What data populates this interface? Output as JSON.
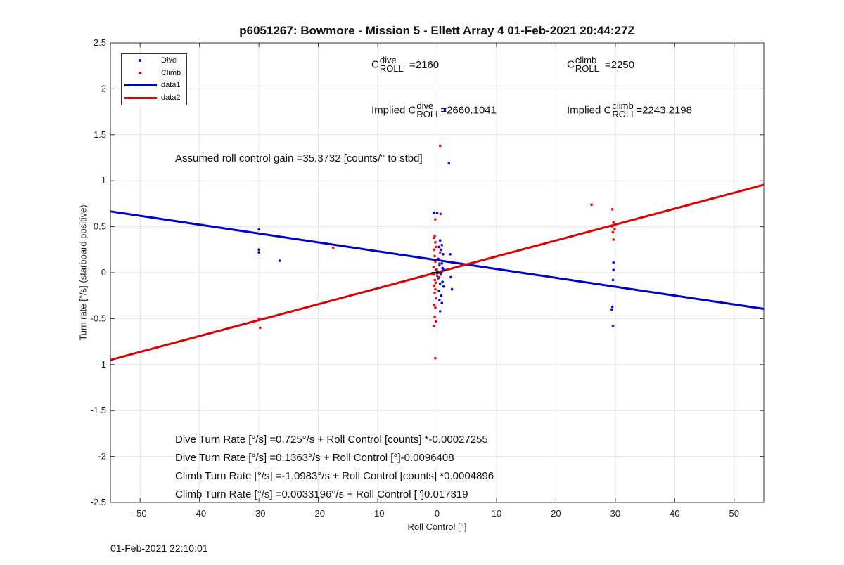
{
  "chart_data": {
    "type": "scatter",
    "title": "p6051267: Bowmore - Mission 5 - Ellett Array 4 01-Feb-2021 20:44:27Z",
    "xlabel": "Roll Control [°]",
    "ylabel": "Turn rate [°/s] (starboard positive)",
    "xlim": [
      -55,
      55
    ],
    "ylim": [
      -2.5,
      2.5
    ],
    "xticks": [
      -50,
      -40,
      -30,
      -20,
      -10,
      0,
      10,
      20,
      30,
      40,
      50
    ],
    "yticks": [
      -2.5,
      -2,
      -1.5,
      -1,
      -0.5,
      0,
      0.5,
      1,
      1.5,
      2,
      2.5
    ],
    "grid": true,
    "legend_position": "top-left",
    "series": [
      {
        "name": "Dive",
        "kind": "points",
        "color": "#0000ff",
        "points": [
          [
            -30,
            0.47
          ],
          [
            -30,
            0.25
          ],
          [
            -30,
            0.22
          ],
          [
            -26.5,
            0.13
          ],
          [
            -0.5,
            0.65
          ],
          [
            0,
            0.65
          ],
          [
            0.5,
            0.35
          ],
          [
            0.8,
            0.3
          ],
          [
            0.3,
            0.28
          ],
          [
            0.6,
            0.25
          ],
          [
            1,
            0.2
          ],
          [
            2.2,
            0.2
          ],
          [
            0.2,
            0.15
          ],
          [
            0.8,
            0.1
          ],
          [
            0.4,
            0.08
          ],
          [
            0.9,
            0.05
          ],
          [
            1.1,
            0.03
          ],
          [
            0.3,
            0.0
          ],
          [
            0.6,
            -0.02
          ],
          [
            2.3,
            -0.05
          ],
          [
            0.2,
            -0.06
          ],
          [
            0.9,
            -0.1
          ],
          [
            0.5,
            -0.12
          ],
          [
            1.1,
            -0.15
          ],
          [
            0.3,
            -0.2
          ],
          [
            2.5,
            -0.18
          ],
          [
            0.7,
            -0.25
          ],
          [
            0.4,
            -0.3
          ],
          [
            0.8,
            -0.33
          ],
          [
            0.5,
            -0.42
          ],
          [
            1.3,
            1.77
          ],
          [
            2,
            1.19
          ],
          [
            29.7,
            0.11
          ],
          [
            29.7,
            0.03
          ],
          [
            29.6,
            -0.08
          ],
          [
            29.5,
            -0.37
          ],
          [
            29.4,
            -0.4
          ],
          [
            29.6,
            -0.58
          ]
        ]
      },
      {
        "name": "Climb",
        "kind": "points",
        "color": "#ff0000",
        "points": [
          [
            -30,
            -0.5
          ],
          [
            -29.8,
            -0.6
          ],
          [
            -17.5,
            0.27
          ],
          [
            0.5,
            1.38
          ],
          [
            0.6,
            0.64
          ],
          [
            -0.3,
            0.58
          ],
          [
            -0.4,
            0.4
          ],
          [
            -0.5,
            0.38
          ],
          [
            -0.3,
            0.33
          ],
          [
            -0.2,
            0.28
          ],
          [
            -0.5,
            0.25
          ],
          [
            0.5,
            0.22
          ],
          [
            -0.4,
            0.18
          ],
          [
            -0.3,
            0.12
          ],
          [
            0.4,
            0.1
          ],
          [
            -0.6,
            0.06
          ],
          [
            -0.2,
            0.03
          ],
          [
            0.2,
            0.01
          ],
          [
            -0.5,
            -0.02
          ],
          [
            0.3,
            -0.05
          ],
          [
            -0.4,
            -0.08
          ],
          [
            -0.2,
            -0.11
          ],
          [
            -0.5,
            -0.14
          ],
          [
            -0.3,
            -0.18
          ],
          [
            -0.4,
            -0.22
          ],
          [
            -0.2,
            -0.28
          ],
          [
            -0.5,
            -0.35
          ],
          [
            -0.3,
            -0.38
          ],
          [
            -0.4,
            -0.48
          ],
          [
            -0.2,
            -0.53
          ],
          [
            -0.5,
            -0.58
          ],
          [
            -0.3,
            -0.93
          ],
          [
            26,
            0.74
          ],
          [
            29.5,
            0.69
          ],
          [
            29.7,
            0.55
          ],
          [
            29.8,
            0.52
          ],
          [
            29.5,
            0.5
          ],
          [
            29.9,
            0.47
          ],
          [
            29.6,
            0.44
          ],
          [
            29.7,
            0.36
          ]
        ]
      },
      {
        "name": "data1",
        "kind": "line",
        "color": "#0000cc",
        "intercept": 0.1363,
        "slope": -0.0096408
      },
      {
        "name": "data2",
        "kind": "line",
        "color": "#dd0000",
        "intercept": 0.0033196,
        "slope": 0.017319
      }
    ],
    "marker": {
      "x": 0,
      "y": 0,
      "symbol": "+"
    },
    "annotations": {
      "c_dive_sub": "ROLL",
      "c_dive_sup": "dive",
      "c_dive_value": "=2160",
      "c_climb_sub": "ROLL",
      "c_climb_sup": "climb",
      "c_climb_value": "=2250",
      "implied_prefix": "Implied C",
      "implied_dive_value": "=2660.1041",
      "implied_climb_value": "=2243.2198",
      "gain_text": "Assumed roll control gain =35.3732 [counts/° to stbd]",
      "eq1": "Dive Turn Rate [°/s] =0.725°/s + Roll Control [counts] *-0.00027255",
      "eq2": "Dive Turn Rate [°/s] =0.1363°/s + Roll Control [°]-0.0096408",
      "eq3": "Climb Turn Rate [°/s] =-1.0983°/s + Roll Control [counts] *0.0004896",
      "eq4": "Climb Turn Rate [°/s] =0.0033196°/s + Roll Control [°]0.017319",
      "c_letter": "C"
    }
  },
  "footer_timestamp": "01-Feb-2021 22:10:01"
}
